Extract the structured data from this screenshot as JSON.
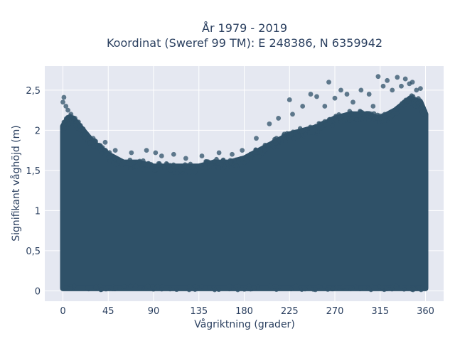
{
  "chart_data": {
    "type": "scatter",
    "title_line1": "År 1979 - 2019",
    "title_line2": "Koordinat (Sweref 99 TM): E 248386, N 6359942",
    "xlabel": "Vågriktning (grader)",
    "ylabel": "Signifikant våghöjd (m)",
    "xlim": [
      -18,
      378
    ],
    "ylim": [
      -0.13,
      2.8
    ],
    "xticks": [
      0,
      45,
      90,
      135,
      180,
      225,
      270,
      315,
      360
    ],
    "xtick_labels": [
      "0",
      "45",
      "90",
      "135",
      "180",
      "225",
      "270",
      "315",
      "360"
    ],
    "yticks": [
      0,
      0.5,
      1,
      1.5,
      2,
      2.5
    ],
    "ytick_labels": [
      "0",
      "0,5",
      "1",
      "1,5",
      "2",
      "2,5"
    ],
    "grid": true,
    "marker_color": "#2f5168",
    "plot_background": "#e5e8f1",
    "upper_envelope": {
      "x": [
        0,
        5,
        10,
        20,
        30,
        45,
        60,
        75,
        90,
        105,
        120,
        135,
        150,
        165,
        180,
        195,
        210,
        225,
        240,
        255,
        270,
        285,
        300,
        315,
        330,
        345,
        355,
        360
      ],
      "y": [
        2.05,
        2.15,
        2.15,
        2.0,
        1.85,
        1.7,
        1.6,
        1.6,
        1.55,
        1.55,
        1.55,
        1.55,
        1.6,
        1.6,
        1.65,
        1.75,
        1.85,
        1.95,
        2.0,
        2.05,
        2.15,
        2.2,
        2.2,
        2.15,
        2.25,
        2.4,
        2.35,
        2.2
      ]
    },
    "outliers": {
      "x": [
        0,
        1,
        3,
        5,
        8,
        12,
        17,
        22,
        30,
        37,
        42,
        52,
        68,
        83,
        92,
        98,
        110,
        122,
        138,
        155,
        168,
        178,
        192,
        205,
        214,
        225,
        228,
        238,
        246,
        252,
        260,
        264,
        270,
        276,
        282,
        288,
        296,
        304,
        308,
        313,
        318,
        322,
        327,
        332,
        336,
        340,
        344,
        347,
        351,
        355
      ],
      "y": [
        2.35,
        2.41,
        2.3,
        2.25,
        2.2,
        2.15,
        2.05,
        1.95,
        1.9,
        1.8,
        1.85,
        1.75,
        1.72,
        1.75,
        1.72,
        1.68,
        1.7,
        1.65,
        1.68,
        1.72,
        1.7,
        1.75,
        1.9,
        2.08,
        2.15,
        2.38,
        2.2,
        2.3,
        2.45,
        2.42,
        2.3,
        2.6,
        2.4,
        2.5,
        2.45,
        2.35,
        2.5,
        2.45,
        2.3,
        2.67,
        2.55,
        2.62,
        2.5,
        2.66,
        2.55,
        2.64,
        2.58,
        2.6,
        2.5,
        2.52
      ]
    }
  }
}
